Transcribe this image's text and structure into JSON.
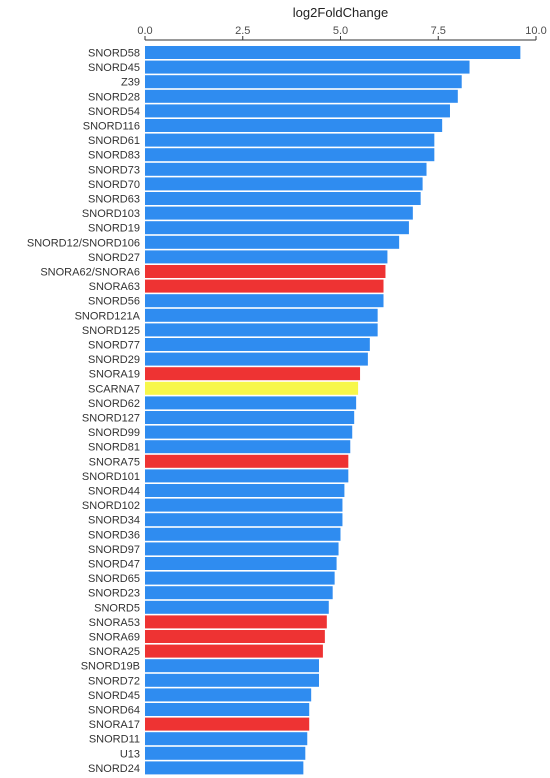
{
  "chart_data": {
    "type": "bar",
    "orientation": "horizontal",
    "xlabel": "log2FoldChange",
    "x_axis_position": "top",
    "xlim": [
      0,
      10
    ],
    "xticks": [
      "0.0",
      "2.5",
      "5.0",
      "7.5",
      "10.0"
    ],
    "grid": false,
    "legend": "none",
    "categories": [
      "SNORD58",
      "SNORD45",
      "Z39",
      "SNORD28",
      "SNORD54",
      "SNORD116",
      "SNORD61",
      "SNORD83",
      "SNORD73",
      "SNORD70",
      "SNORD63",
      "SNORD103",
      "SNORD19",
      "SNORD12/SNORD106",
      "SNORD27",
      "SNORA62/SNORA6",
      "SNORA63",
      "SNORD56",
      "SNORD121A",
      "SNORD125",
      "SNORD77",
      "SNORD29",
      "SNORA19",
      "SCARNA7",
      "SNORD62",
      "SNORD127",
      "SNORD99",
      "SNORD81",
      "SNORA75",
      "SNORD101",
      "SNORD44",
      "SNORD102",
      "SNORD34",
      "SNORD36",
      "SNORD97",
      "SNORD47",
      "SNORD65",
      "SNORD23",
      "SNORD5",
      "SNORA53",
      "SNORA69",
      "SNORA25",
      "SNORD19B",
      "SNORD72",
      "SNORD45",
      "SNORD64",
      "SNORA17",
      "SNORD11",
      "U13",
      "SNORD24"
    ],
    "values": [
      9.6,
      8.3,
      8.1,
      8.0,
      7.8,
      7.6,
      7.4,
      7.4,
      7.2,
      7.1,
      7.05,
      6.85,
      6.75,
      6.5,
      6.2,
      6.15,
      6.1,
      6.1,
      5.95,
      5.95,
      5.75,
      5.7,
      5.5,
      5.45,
      5.4,
      5.35,
      5.3,
      5.25,
      5.2,
      5.2,
      5.1,
      5.05,
      5.05,
      5.0,
      4.95,
      4.9,
      4.85,
      4.8,
      4.7,
      4.65,
      4.6,
      4.55,
      4.45,
      4.45,
      4.25,
      4.2,
      4.2,
      4.15,
      4.1,
      4.05
    ],
    "bar_types": [
      "snord",
      "snord",
      "snord",
      "snord",
      "snord",
      "snord",
      "snord",
      "snord",
      "snord",
      "snord",
      "snord",
      "snord",
      "snord",
      "snord",
      "snord",
      "snora",
      "snora",
      "snord",
      "snord",
      "snord",
      "snord",
      "snord",
      "snora",
      "scarna",
      "snord",
      "snord",
      "snord",
      "snord",
      "snora",
      "snord",
      "snord",
      "snord",
      "snord",
      "snord",
      "snord",
      "snord",
      "snord",
      "snord",
      "snord",
      "snora",
      "snora",
      "snora",
      "snord",
      "snord",
      "snord",
      "snord",
      "snora",
      "snord",
      "snord",
      "snord"
    ],
    "colors": {
      "snord": "#2f8cf0",
      "snora": "#ee3333",
      "scarna": "#f7f74a"
    },
    "axis_color": "#333333",
    "tick_label_color": "#4d4d4d"
  }
}
